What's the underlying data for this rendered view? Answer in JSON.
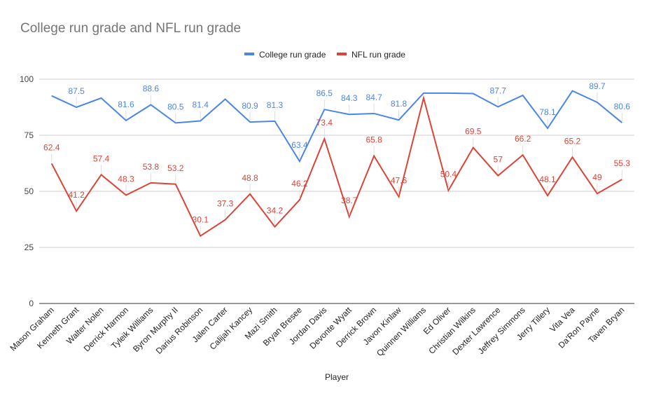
{
  "chart_data": {
    "type": "line",
    "title": "College run grade and NFL run grade",
    "xlabel": "Player",
    "ylabel": "",
    "ylim": [
      0,
      100
    ],
    "yticks": [
      "0",
      "25",
      "50",
      "75",
      "100"
    ],
    "grid": true,
    "legend_position": "top",
    "categories": [
      "Mason Graham",
      "Kenneth Grant",
      "Walter Nolen",
      "Derrick Harmon",
      "Tyleik Williams",
      "Byron Murphy II",
      "Darius Robinson",
      "Jalen Carter",
      "Calijah Kancey",
      "Mazi Smith",
      "Bryan Bresee",
      "Jordan Davis",
      "Devonte Wyatt",
      "Derrick Brown",
      "Javon Kinlaw",
      "Quinnen Williams",
      "Ed Oliver",
      "Christian Wilkins",
      "Dexter Lawrence",
      "Jeffrey Simmons",
      "Jerry Tillery",
      "Vita Vea",
      "Da'Ron Payne",
      "Taven Bryan"
    ],
    "series": [
      {
        "name": "College run grade",
        "color": "#4a86e8",
        "values": [
          92.6,
          87.5,
          91.6,
          81.6,
          88.6,
          80.5,
          81.4,
          91.1,
          80.9,
          81.3,
          63.4,
          86.5,
          84.3,
          84.7,
          81.8,
          93.8,
          93.8,
          93.6,
          87.7,
          92.8,
          78.1,
          94.8,
          89.7,
          80.6
        ],
        "labels": [
          null,
          "87.5",
          null,
          "81.6",
          "88.6",
          "80.5",
          "81.4",
          null,
          "80.9",
          "81.3",
          "63.4",
          "86.5",
          "84.3",
          "84.7",
          "81.8",
          null,
          null,
          null,
          "87.7",
          null,
          "78.1",
          null,
          "89.7",
          "80.6"
        ]
      },
      {
        "name": "NFL run grade",
        "color": "#db4437",
        "values": [
          62.4,
          41.2,
          57.4,
          48.3,
          53.8,
          53.2,
          30.1,
          37.3,
          48.8,
          34.2,
          46.2,
          73.4,
          38.7,
          65.8,
          47.6,
          91.6,
          50.4,
          69.5,
          57,
          66.2,
          48.1,
          65.2,
          49,
          55.3
        ],
        "labels": [
          "62.4",
          "41.2",
          "57.4",
          "48.3",
          "53.8",
          "53.2",
          "30.1",
          "37.3",
          "48.8",
          "34.2",
          "46.2",
          "73.4",
          "38.7",
          "65.8",
          "47.6",
          null,
          "50.4",
          "69.5",
          "57",
          "66.2",
          "48.1",
          "65.2",
          "49",
          "55.3"
        ]
      }
    ]
  }
}
